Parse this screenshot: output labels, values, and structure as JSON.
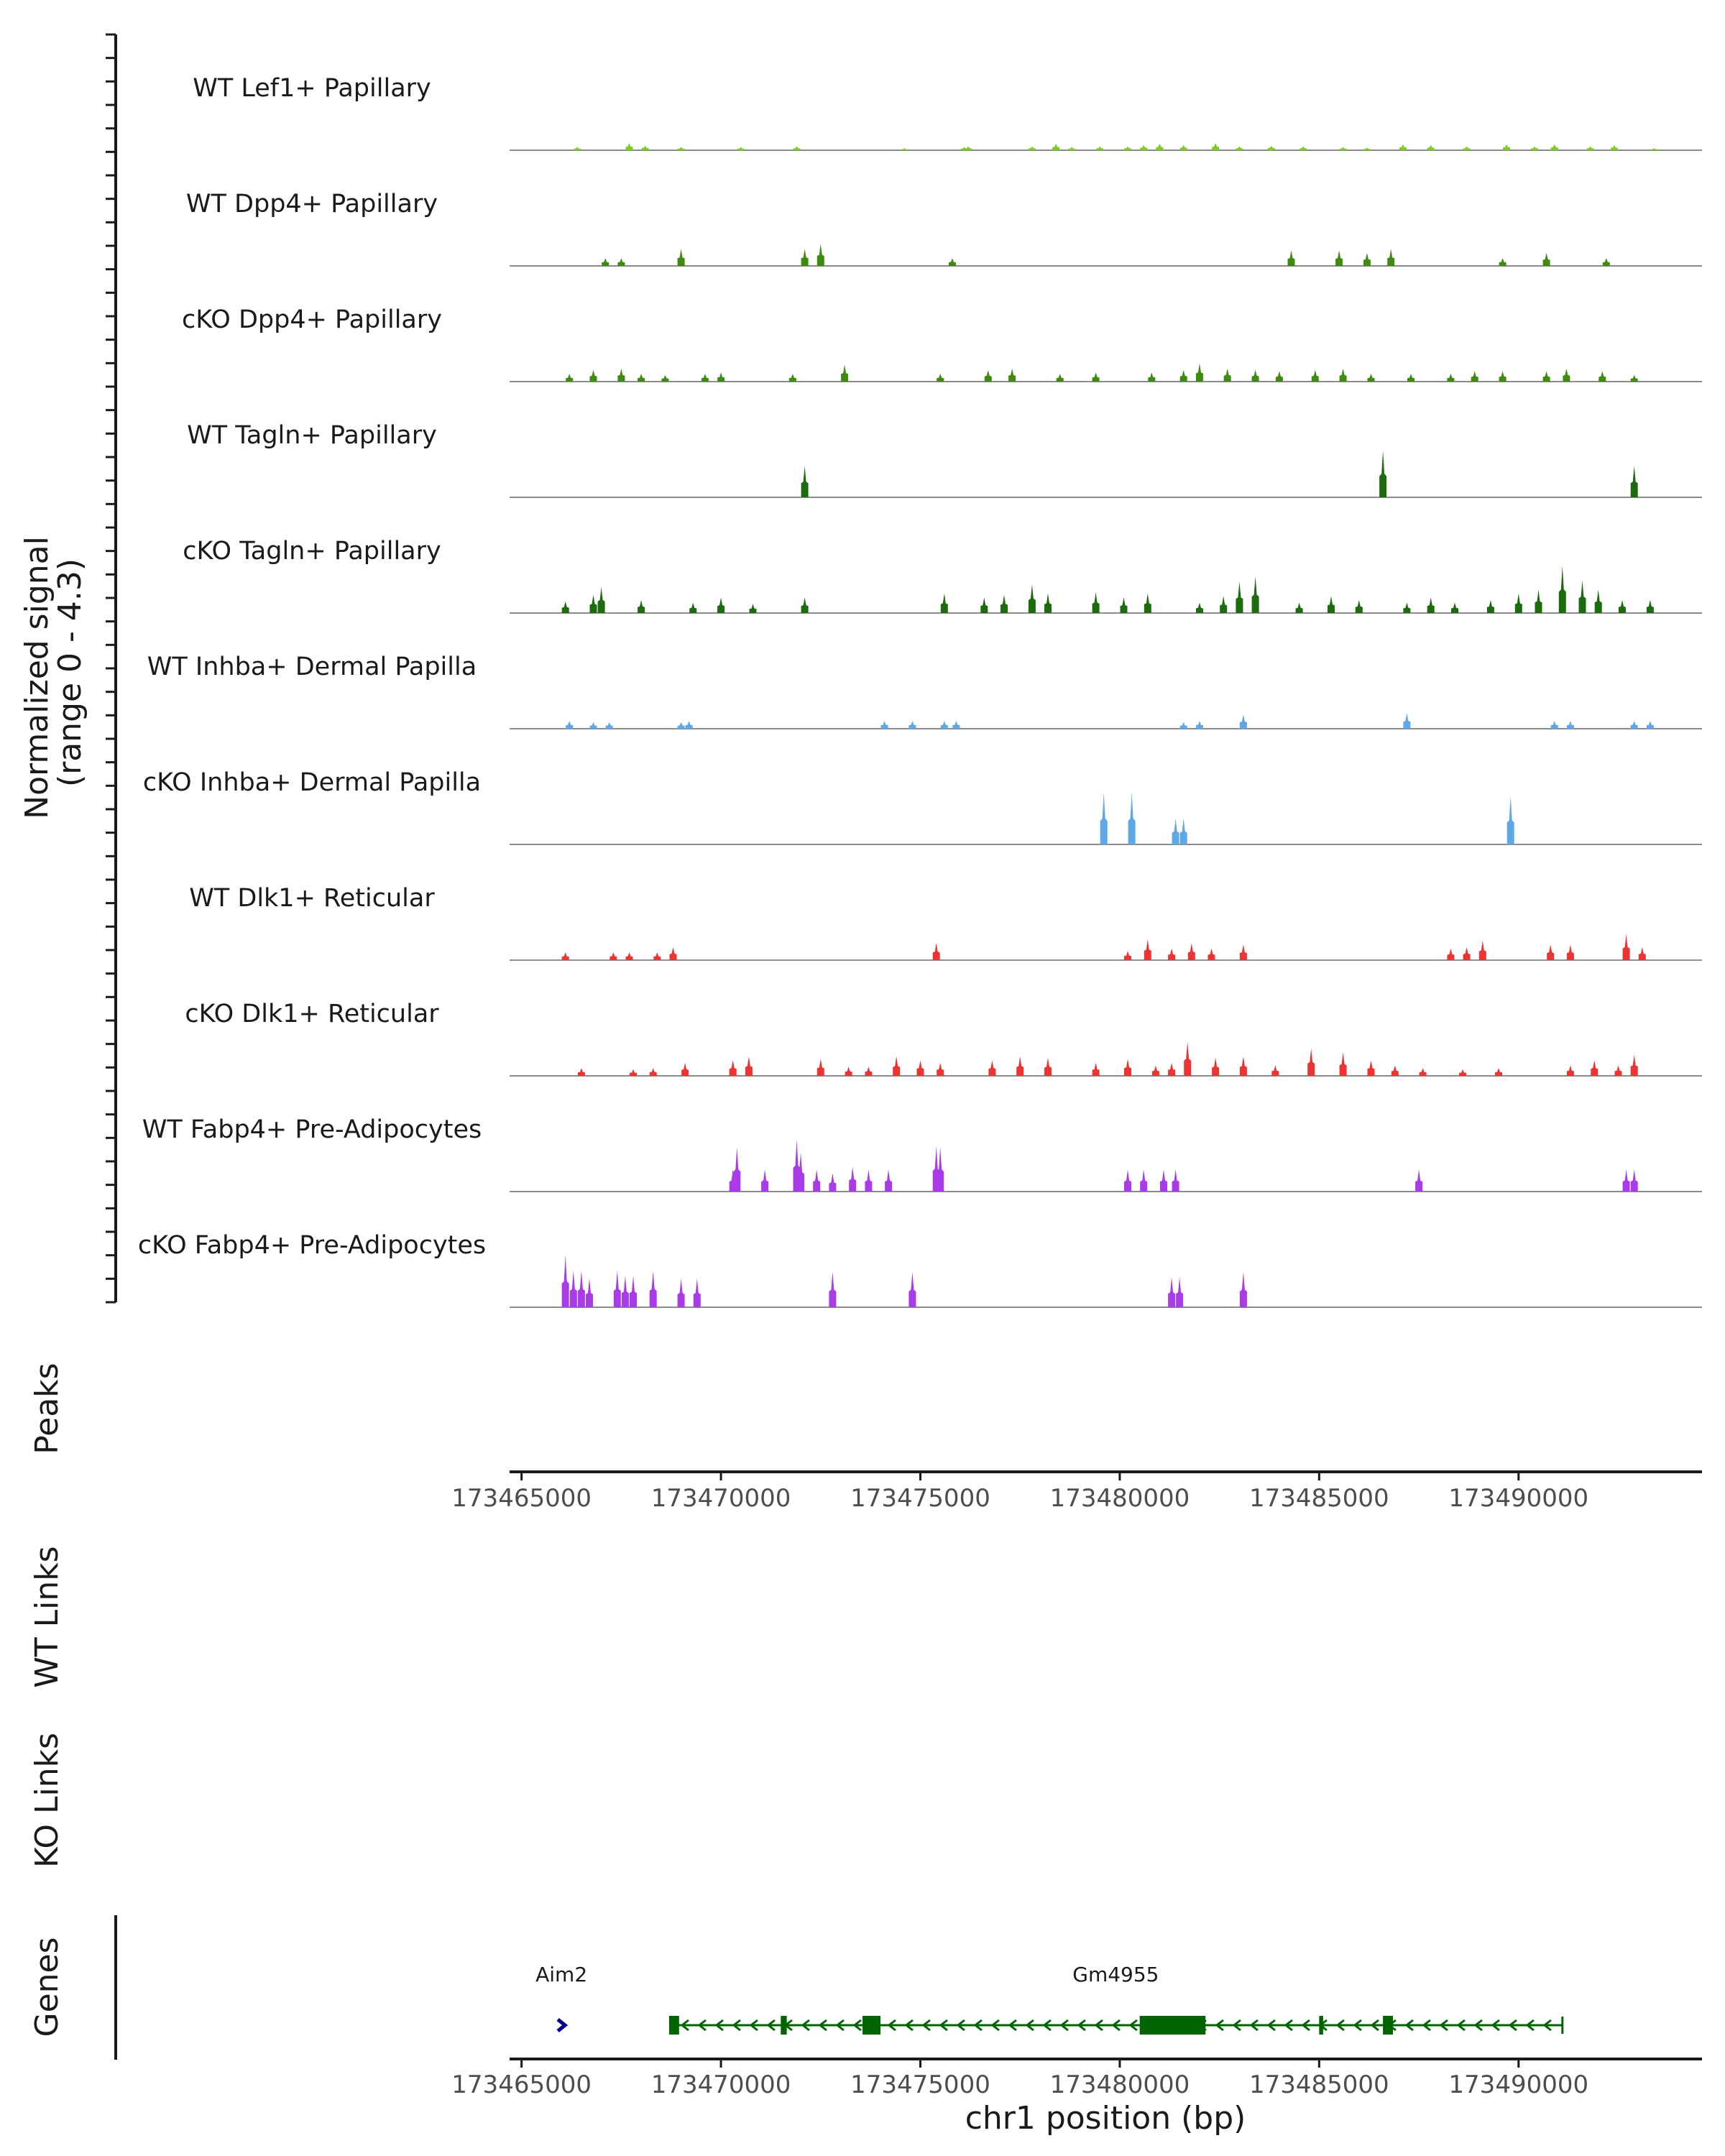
{
  "chart_data": {
    "type": "coverage",
    "chromosome": "chr1",
    "xlim": [
      173464700,
      173494600
    ],
    "signal_range_label": [
      "Normalized signal",
      "(range 0 - 4.3)"
    ],
    "ylim": [
      0,
      4.3
    ],
    "xlabel": "chr1 position (bp)",
    "x_ticks": [
      {
        "value": 173465000,
        "label": "173465000"
      },
      {
        "value": 173470000,
        "label": "173470000"
      },
      {
        "value": 173475000,
        "label": "173475000"
      },
      {
        "value": 173480000,
        "label": "173480000"
      },
      {
        "value": 173485000,
        "label": "173485000"
      },
      {
        "value": 173490000,
        "label": "173490000"
      }
    ],
    "tracks": [
      {
        "name": "WT Lef1+ Papillary",
        "color": "#7CCD1E",
        "peaks": [
          [
            173466400,
            0.25
          ],
          [
            173467700,
            0.55
          ],
          [
            173468100,
            0.35
          ],
          [
            173469000,
            0.25
          ],
          [
            173470500,
            0.25
          ],
          [
            173471900,
            0.3
          ],
          [
            173474600,
            0.15
          ],
          [
            173476100,
            0.25
          ],
          [
            173476200,
            0.3
          ],
          [
            173477800,
            0.3
          ],
          [
            173478400,
            0.5
          ],
          [
            173478800,
            0.25
          ],
          [
            173479500,
            0.3
          ],
          [
            173480200,
            0.3
          ],
          [
            173480600,
            0.4
          ],
          [
            173481000,
            0.5
          ],
          [
            173481600,
            0.4
          ],
          [
            173482400,
            0.55
          ],
          [
            173483000,
            0.3
          ],
          [
            173483800,
            0.35
          ],
          [
            173484600,
            0.3
          ],
          [
            173485600,
            0.25
          ],
          [
            173486200,
            0.2
          ],
          [
            173487100,
            0.45
          ],
          [
            173487800,
            0.4
          ],
          [
            173488700,
            0.3
          ],
          [
            173489700,
            0.45
          ],
          [
            173490400,
            0.3
          ],
          [
            173490900,
            0.45
          ],
          [
            173491800,
            0.3
          ],
          [
            173492400,
            0.4
          ],
          [
            173493400,
            0.15
          ]
        ]
      },
      {
        "name": "WT Dpp4+ Papillary",
        "color": "#3F8A10",
        "peaks": [
          [
            173467100,
            0.6
          ],
          [
            173467500,
            0.6
          ],
          [
            173469000,
            1.3
          ],
          [
            173472100,
            1.3
          ],
          [
            173472500,
            1.7
          ],
          [
            173475800,
            0.6
          ],
          [
            173484300,
            1.2
          ],
          [
            173485500,
            1.2
          ],
          [
            173486200,
            1.0
          ],
          [
            173486800,
            1.3
          ],
          [
            173489600,
            0.6
          ],
          [
            173490700,
            1.0
          ],
          [
            173492200,
            0.6
          ]
        ]
      },
      {
        "name": "cKO Dpp4+ Papillary",
        "color": "#3F8A10",
        "peaks": [
          [
            173466200,
            0.6
          ],
          [
            173466800,
            0.9
          ],
          [
            173467500,
            1.0
          ],
          [
            173468000,
            0.6
          ],
          [
            173468600,
            0.5
          ],
          [
            173469600,
            0.6
          ],
          [
            173470000,
            0.7
          ],
          [
            173471800,
            0.6
          ],
          [
            173473100,
            1.3
          ],
          [
            173475500,
            0.6
          ],
          [
            173476700,
            0.9
          ],
          [
            173477300,
            1.0
          ],
          [
            173478500,
            0.6
          ],
          [
            173479400,
            0.7
          ],
          [
            173480800,
            0.7
          ],
          [
            173481600,
            0.9
          ],
          [
            173482000,
            1.4
          ],
          [
            173482700,
            1.0
          ],
          [
            173483400,
            0.9
          ],
          [
            173484000,
            0.8
          ],
          [
            173484900,
            0.9
          ],
          [
            173485600,
            1.0
          ],
          [
            173486300,
            0.6
          ],
          [
            173487300,
            0.6
          ],
          [
            173488300,
            0.6
          ],
          [
            173488900,
            0.8
          ],
          [
            173489600,
            0.8
          ],
          [
            173490700,
            0.8
          ],
          [
            173491200,
            1.0
          ],
          [
            173492100,
            0.8
          ],
          [
            173492900,
            0.5
          ]
        ]
      },
      {
        "name": "WT Tagln+ Papillary",
        "color": "#1C6B0E",
        "peaks": [
          [
            173472100,
            2.4
          ],
          [
            173486600,
            3.6
          ],
          [
            173492900,
            2.4
          ]
        ]
      },
      {
        "name": "cKO Tagln+ Papillary",
        "color": "#1C6B0E",
        "peaks": [
          [
            173466100,
            0.9
          ],
          [
            173466800,
            1.4
          ],
          [
            173467000,
            2.0
          ],
          [
            173468000,
            1.0
          ],
          [
            173469300,
            0.8
          ],
          [
            173470000,
            1.2
          ],
          [
            173470800,
            0.7
          ],
          [
            173472100,
            1.2
          ],
          [
            173475600,
            1.5
          ],
          [
            173476600,
            1.2
          ],
          [
            173477100,
            1.4
          ],
          [
            173477800,
            2.2
          ],
          [
            173478200,
            1.5
          ],
          [
            173479400,
            1.6
          ],
          [
            173480100,
            1.2
          ],
          [
            173480700,
            1.5
          ],
          [
            173482000,
            0.8
          ],
          [
            173482600,
            1.3
          ],
          [
            173483000,
            2.4
          ],
          [
            173483400,
            2.8
          ],
          [
            173484500,
            0.8
          ],
          [
            173485300,
            1.3
          ],
          [
            173486000,
            1.0
          ],
          [
            173487200,
            0.8
          ],
          [
            173487800,
            1.2
          ],
          [
            173488400,
            0.8
          ],
          [
            173489300,
            1.0
          ],
          [
            173490000,
            1.5
          ],
          [
            173490500,
            1.8
          ],
          [
            173491100,
            3.6
          ],
          [
            173491600,
            2.5
          ],
          [
            173492000,
            1.8
          ],
          [
            173492600,
            1.0
          ],
          [
            173493300,
            1.0
          ]
        ]
      },
      {
        "name": "WT Inhba+ Dermal Papilla",
        "color": "#5FA8E8",
        "peaks": [
          [
            173466200,
            0.6
          ],
          [
            173466800,
            0.5
          ],
          [
            173467200,
            0.5
          ],
          [
            173469000,
            0.5
          ],
          [
            173469200,
            0.6
          ],
          [
            173474100,
            0.6
          ],
          [
            173474800,
            0.6
          ],
          [
            173475600,
            0.6
          ],
          [
            173475900,
            0.6
          ],
          [
            173481600,
            0.5
          ],
          [
            173482000,
            0.6
          ],
          [
            173483100,
            1.1
          ],
          [
            173487200,
            1.2
          ],
          [
            173490900,
            0.6
          ],
          [
            173491300,
            0.6
          ],
          [
            173492900,
            0.6
          ],
          [
            173493300,
            0.6
          ]
        ]
      },
      {
        "name": "cKO Inhba+ Dermal Papilla",
        "color": "#5FA8E8",
        "peaks": [
          [
            173479600,
            4.0
          ],
          [
            173480300,
            4.0
          ],
          [
            173481400,
            2.0
          ],
          [
            173481600,
            2.0
          ],
          [
            173489800,
            3.7
          ]
        ]
      },
      {
        "name": "WT Dlk1+ Reticular",
        "color": "#EE3333",
        "peaks": [
          [
            173466100,
            0.6
          ],
          [
            173467300,
            0.6
          ],
          [
            173467700,
            0.6
          ],
          [
            173468400,
            0.6
          ],
          [
            173468800,
            1.0
          ],
          [
            173475400,
            1.3
          ],
          [
            173480200,
            0.7
          ],
          [
            173480700,
            1.6
          ],
          [
            173481300,
            0.9
          ],
          [
            173481800,
            1.3
          ],
          [
            173482300,
            0.9
          ],
          [
            173483100,
            1.2
          ],
          [
            173488300,
            0.9
          ],
          [
            173488700,
            1.0
          ],
          [
            173489100,
            1.5
          ],
          [
            173490800,
            1.2
          ],
          [
            173491300,
            1.2
          ],
          [
            173492700,
            2.0
          ],
          [
            173493100,
            1.0
          ]
        ]
      },
      {
        "name": "cKO Dlk1+ Reticular",
        "color": "#EE3333",
        "peaks": [
          [
            173466500,
            0.6
          ],
          [
            173467800,
            0.5
          ],
          [
            173468300,
            0.6
          ],
          [
            173469100,
            1.0
          ],
          [
            173470300,
            1.2
          ],
          [
            173470700,
            1.5
          ],
          [
            173472500,
            1.3
          ],
          [
            173473200,
            0.7
          ],
          [
            173473700,
            0.7
          ],
          [
            173474400,
            1.5
          ],
          [
            173475000,
            1.2
          ],
          [
            173475500,
            1.0
          ],
          [
            173476800,
            1.2
          ],
          [
            173477500,
            1.5
          ],
          [
            173478200,
            1.4
          ],
          [
            173479400,
            1.0
          ],
          [
            173480200,
            1.3
          ],
          [
            173480900,
            0.8
          ],
          [
            173481300,
            1.0
          ],
          [
            173481700,
            2.6
          ],
          [
            173482400,
            1.4
          ],
          [
            173483100,
            1.5
          ],
          [
            173483900,
            0.8
          ],
          [
            173484800,
            2.1
          ],
          [
            173485600,
            1.8
          ],
          [
            173486300,
            1.2
          ],
          [
            173486900,
            0.8
          ],
          [
            173487600,
            0.6
          ],
          [
            173488600,
            0.5
          ],
          [
            173489500,
            0.6
          ],
          [
            173491300,
            0.8
          ],
          [
            173491900,
            1.2
          ],
          [
            173492500,
            0.8
          ],
          [
            173492900,
            1.6
          ]
        ]
      },
      {
        "name": "WT Fabp4+ Pre-Adipocytes",
        "color": "#A93CE8",
        "peaks": [
          [
            173470300,
            1.7
          ],
          [
            173470400,
            3.4
          ],
          [
            173471100,
            1.7
          ],
          [
            173471900,
            4.0
          ],
          [
            173472000,
            3.0
          ],
          [
            173472400,
            1.7
          ],
          [
            173472800,
            1.4
          ],
          [
            173473300,
            1.9
          ],
          [
            173473700,
            1.7
          ],
          [
            173474200,
            1.7
          ],
          [
            173475400,
            3.5
          ],
          [
            173475500,
            3.4
          ],
          [
            173480200,
            1.7
          ],
          [
            173480600,
            1.7
          ],
          [
            173481100,
            1.7
          ],
          [
            173481400,
            1.7
          ],
          [
            173487500,
            1.7
          ],
          [
            173492700,
            1.7
          ],
          [
            173492900,
            1.7
          ]
        ]
      },
      {
        "name": "cKO Fabp4+ Pre-Adipocytes",
        "color": "#A93CE8",
        "peaks": [
          [
            173466100,
            4.0
          ],
          [
            173466300,
            2.8
          ],
          [
            173466500,
            2.8
          ],
          [
            173466700,
            2.2
          ],
          [
            173467400,
            2.8
          ],
          [
            173467600,
            2.4
          ],
          [
            173467800,
            2.4
          ],
          [
            173468300,
            2.8
          ],
          [
            173469000,
            2.2
          ],
          [
            173469400,
            2.2
          ],
          [
            173472800,
            2.7
          ],
          [
            173474800,
            2.7
          ],
          [
            173481300,
            2.3
          ],
          [
            173481500,
            2.3
          ],
          [
            173483100,
            2.7
          ]
        ]
      }
    ],
    "peaks_panel_label": "Peaks",
    "wt_links_label": "WT Links",
    "ko_links_label": "KO Links",
    "genes_panel_label": "Genes",
    "genes": [
      {
        "name": "Aim2",
        "strand": "+",
        "start": 173465900,
        "end": 173466100,
        "exons": [],
        "color": "#00008B"
      },
      {
        "name": "Gm4955",
        "strand": "-",
        "start": 173468700,
        "end": 173491100,
        "exons": [
          [
            173468700,
            173468950
          ],
          [
            173471500,
            173471650
          ],
          [
            173473550,
            173474000
          ],
          [
            173480500,
            173482150
          ],
          [
            173485000,
            173485100
          ],
          [
            173486600,
            173486850
          ]
        ],
        "color": "#006400"
      }
    ]
  }
}
